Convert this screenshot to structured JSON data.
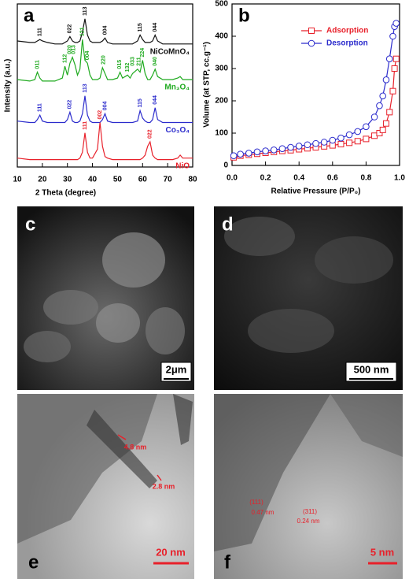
{
  "chart_data": [
    {
      "type": "line",
      "panel_label": "a",
      "xlabel": "2 Theta (degree)",
      "ylabel": "Intensity (a.u.)",
      "xlim": [
        10,
        80
      ],
      "xticks": [
        10,
        20,
        30,
        40,
        50,
        60,
        70,
        80
      ],
      "ylim": [
        0,
        110
      ],
      "x": [
        10,
        15,
        17,
        18,
        19,
        20,
        22,
        25,
        28,
        29,
        30,
        31,
        32,
        33,
        34,
        35,
        36,
        37,
        38,
        39,
        40,
        42,
        43,
        44,
        45,
        46,
        48,
        50,
        51,
        52,
        54,
        55,
        56,
        58,
        59,
        60,
        61,
        62,
        63,
        64,
        65,
        66,
        68,
        70,
        72,
        74,
        75,
        76,
        78,
        80
      ],
      "series": [
        {
          "name": "NiCoMnO₄",
          "color": "#111111",
          "values": [
            85,
            84,
            84,
            85,
            86,
            85,
            84,
            83,
            83,
            84,
            85,
            88,
            85,
            84,
            84,
            85,
            91,
            100,
            89,
            85,
            84,
            84,
            84,
            85,
            87,
            84,
            83,
            83,
            83,
            83,
            83,
            83,
            83,
            85,
            89,
            86,
            84,
            84,
            84,
            85,
            89,
            85,
            83,
            83,
            83,
            83,
            83,
            83,
            83,
            83
          ],
          "peak_labels": [
            {
              "x": 19,
              "text": "111"
            },
            {
              "x": 31,
              "text": "022"
            },
            {
              "x": 37,
              "text": "113"
            },
            {
              "x": 45,
              "text": "004"
            },
            {
              "x": 59,
              "text": "115"
            },
            {
              "x": 65,
              "text": "044"
            }
          ]
        },
        {
          "name": "Mn₃O₄",
          "color": "#1faa1f",
          "values": [
            59,
            58,
            59,
            64,
            60,
            58,
            58,
            58,
            60,
            68,
            62,
            70,
            74,
            69,
            62,
            66,
            86,
            72,
            70,
            62,
            59,
            59,
            60,
            67,
            63,
            59,
            59,
            60,
            64,
            60,
            62,
            60,
            63,
            66,
            64,
            72,
            63,
            59,
            59,
            62,
            66,
            61,
            59,
            59,
            59,
            60,
            61,
            59,
            59,
            59
          ],
          "peak_labels": [
            {
              "x": 18,
              "text": "011"
            },
            {
              "x": 29,
              "text": "112"
            },
            {
              "x": 31,
              "text": "020"
            },
            {
              "x": 32.5,
              "text": "013"
            },
            {
              "x": 36,
              "text": "121"
            },
            {
              "x": 38,
              "text": "004"
            },
            {
              "x": 44.5,
              "text": "220"
            },
            {
              "x": 50.8,
              "text": "015"
            },
            {
              "x": 54,
              "text": "132"
            },
            {
              "x": 56,
              "text": "033"
            },
            {
              "x": 58.5,
              "text": "211"
            },
            {
              "x": 60,
              "text": "224"
            },
            {
              "x": 65,
              "text": "040"
            }
          ]
        },
        {
          "name": "Co₃O₄",
          "color": "#2b2bcc",
          "values": [
            31,
            30,
            30,
            32,
            35,
            31,
            30,
            30,
            30,
            30,
            32,
            37,
            31,
            30,
            30,
            31,
            36,
            48,
            35,
            31,
            30,
            30,
            30,
            32,
            36,
            31,
            30,
            30,
            30,
            30,
            30,
            30,
            30,
            31,
            38,
            33,
            31,
            30,
            30,
            32,
            40,
            32,
            30,
            30,
            30,
            30,
            30,
            30,
            30,
            30
          ],
          "peak_labels": [
            {
              "x": 19,
              "text": "111"
            },
            {
              "x": 31,
              "text": "022"
            },
            {
              "x": 37,
              "text": "113"
            },
            {
              "x": 45,
              "text": "004"
            },
            {
              "x": 59,
              "text": "115"
            },
            {
              "x": 65,
              "text": "044"
            }
          ]
        },
        {
          "name": "NiO",
          "color": "#e8202a",
          "values": [
            6,
            5,
            5,
            5,
            5,
            5,
            5,
            5,
            5,
            5,
            5,
            5,
            5,
            5,
            5,
            6,
            10,
            23,
            10,
            6,
            6,
            12,
            30,
            14,
            7,
            6,
            5,
            5,
            5,
            5,
            5,
            5,
            5,
            5,
            5,
            6,
            8,
            14,
            17,
            8,
            6,
            5,
            5,
            5,
            5,
            6,
            8,
            6,
            6,
            6
          ],
          "peak_labels": [
            {
              "x": 37,
              "text": "111"
            },
            {
              "x": 43,
              "text": "002"
            },
            {
              "x": 63,
              "text": "022"
            }
          ]
        }
      ]
    },
    {
      "type": "line",
      "panel_label": "b",
      "xlabel": "Relative Pressure (P/P₀)",
      "ylabel": "Volume (at STP, cc.g⁻¹)",
      "xlim": [
        0,
        1
      ],
      "xticks": [
        {
          "value": 0,
          "label": "0.0"
        },
        {
          "value": 0.2,
          "label": "0.2"
        },
        {
          "value": 0.4,
          "label": "0.4"
        },
        {
          "value": 0.6,
          "label": "0.6"
        },
        {
          "value": 0.8,
          "label": "0.8"
        },
        {
          "value": 1,
          "label": "1.0"
        }
      ],
      "ylim": [
        0,
        500
      ],
      "yticks": [
        0,
        100,
        200,
        300,
        400,
        500
      ],
      "legend": "upper-right",
      "x": [
        0.01,
        0.05,
        0.1,
        0.15,
        0.2,
        0.25,
        0.3,
        0.35,
        0.4,
        0.45,
        0.5,
        0.55,
        0.6,
        0.65,
        0.7,
        0.75,
        0.8,
        0.85,
        0.88,
        0.9,
        0.92,
        0.94,
        0.96,
        0.97,
        0.98
      ],
      "series": [
        {
          "name": "Adsorption",
          "color": "#e8202a",
          "marker": "square",
          "values": [
            25,
            30,
            33,
            36,
            39,
            42,
            45,
            47,
            50,
            53,
            56,
            59,
            62,
            66,
            70,
            75,
            82,
            92,
            100,
            110,
            130,
            165,
            230,
            300,
            330
          ]
        },
        {
          "name": "Desorption",
          "color": "#2b2bcc",
          "marker": "circle",
          "values": [
            30,
            35,
            38,
            42,
            45,
            48,
            52,
            56,
            60,
            64,
            68,
            72,
            78,
            85,
            95,
            105,
            120,
            150,
            185,
            215,
            265,
            330,
            400,
            430,
            440
          ]
        }
      ]
    }
  ],
  "panels": [
    {
      "label": "c",
      "scale_bar": "2μm"
    },
    {
      "label": "d",
      "scale_bar": "500 nm"
    },
    {
      "label": "e",
      "scale_bar": "20 nm",
      "annotations": [
        "4.8 nm",
        "2.8 nm"
      ]
    },
    {
      "label": "f",
      "scale_bar": "5 nm",
      "annotations": [
        "(111)",
        "0.47 nm",
        "(311)",
        "0.24 nm"
      ]
    }
  ]
}
